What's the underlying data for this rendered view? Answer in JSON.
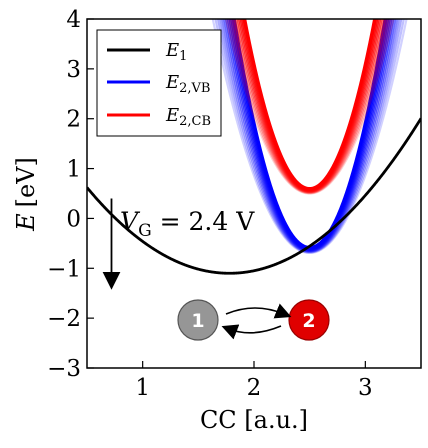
{
  "chart_data": {
    "type": "line",
    "title": "",
    "xlabel": "CC [a.u.]",
    "ylabel_var": "E",
    "ylabel_unit": "[eV]",
    "xlim": [
      0.5,
      3.5
    ],
    "ylim": [
      -3,
      4
    ],
    "xticks": [
      1,
      2,
      3
    ],
    "yticks": [
      -3,
      -2,
      -1,
      0,
      1,
      2,
      3,
      4
    ],
    "ytick_labels": [
      "−3",
      "−2",
      "−1",
      "0",
      "1",
      "2",
      "3",
      "4"
    ],
    "grid": false,
    "legend_position": "top-left",
    "series": [
      {
        "name_main": "E",
        "name_sub": "1",
        "color": "#000000",
        "shape": "parabola",
        "vertex_x": 1.78,
        "vertex_y": -1.1,
        "curvature": 1.05
      },
      {
        "name_main": "E",
        "name_sub": "2,VB",
        "color": "#0000ff",
        "shape": "parabola_band",
        "vertex_x": 2.5,
        "vertex_y": -0.58,
        "curvature": 10.0,
        "band_spread": 0.45,
        "band_count": 12
      },
      {
        "name_main": "E",
        "name_sub": "2,CB",
        "color": "#ff0000",
        "shape": "parabola_band",
        "vertex_x": 2.5,
        "vertex_y": 0.6,
        "curvature": 10.0,
        "band_spread": 0.4,
        "band_count": 12
      }
    ],
    "annotations": {
      "voltage_var": "V",
      "voltage_sub": "G",
      "voltage_value": " = 2.4 V",
      "arrow_x": 0.72,
      "arrow_from_y": 0.4,
      "arrow_to_y": -1.25,
      "state_1": "1",
      "state_2": "2",
      "state_1_color": "#969696",
      "state_2_color": "#e00000"
    }
  }
}
